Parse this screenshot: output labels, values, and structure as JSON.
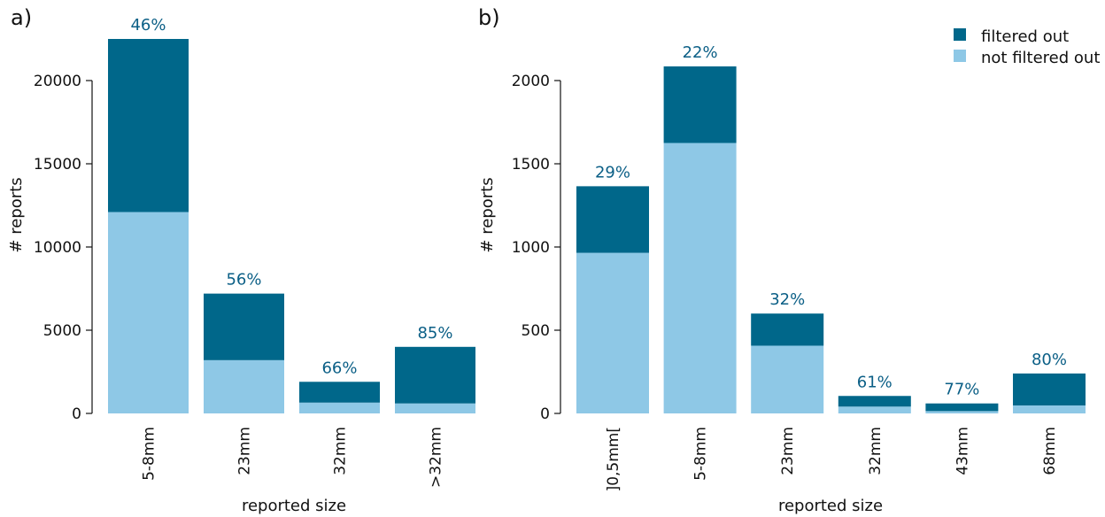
{
  "colors": {
    "filtered_out": "#00678a",
    "not_filtered_out": "#8ec8e6",
    "percent_text": "#0b5f86"
  },
  "legend": {
    "filtered_out": "filtered out",
    "not_filtered_out": "not filtered out"
  },
  "chart_data": [
    {
      "type": "bar",
      "panel_label": "a)",
      "stacked": true,
      "categories": [
        "5-8mm",
        "23mm",
        "32mm",
        ">32mm"
      ],
      "series": [
        {
          "name": "not filtered out",
          "values": [
            12100,
            3200,
            650,
            600
          ]
        },
        {
          "name": "filtered out",
          "values": [
            10400,
            4000,
            1250,
            3400
          ]
        }
      ],
      "totals": [
        22500,
        7200,
        1900,
        4000
      ],
      "percent_labels": [
        "46%",
        "56%",
        "66%",
        "85%"
      ],
      "xlabel": "reported size",
      "ylabel": "# reports",
      "ylim": [
        0,
        23000
      ],
      "yticks": [
        0,
        5000,
        10000,
        15000,
        20000
      ],
      "ytick_labels": [
        "0",
        "5000",
        "10000",
        "15000",
        "20000"
      ]
    },
    {
      "type": "bar",
      "panel_label": "b)",
      "stacked": true,
      "categories": [
        "]0,5mm[",
        "5-8mm",
        "23mm",
        "32mm",
        "43mm",
        "68mm"
      ],
      "series": [
        {
          "name": "not filtered out",
          "values": [
            965,
            1625,
            407,
            41,
            14,
            48
          ]
        },
        {
          "name": "filtered out",
          "values": [
            400,
            460,
            193,
            64,
            46,
            192
          ]
        }
      ],
      "totals": [
        1365,
        2085,
        600,
        105,
        60,
        240
      ],
      "percent_labels": [
        "29%",
        "22%",
        "32%",
        "61%",
        "77%",
        "80%"
      ],
      "xlabel": "reported size",
      "ylabel": "# reports",
      "ylim": [
        0,
        2200
      ],
      "yticks": [
        0,
        500,
        1000,
        1500,
        2000
      ],
      "ytick_labels": [
        "0",
        "500",
        "1000",
        "1500",
        "2000"
      ],
      "legend_position": "top-right"
    }
  ]
}
